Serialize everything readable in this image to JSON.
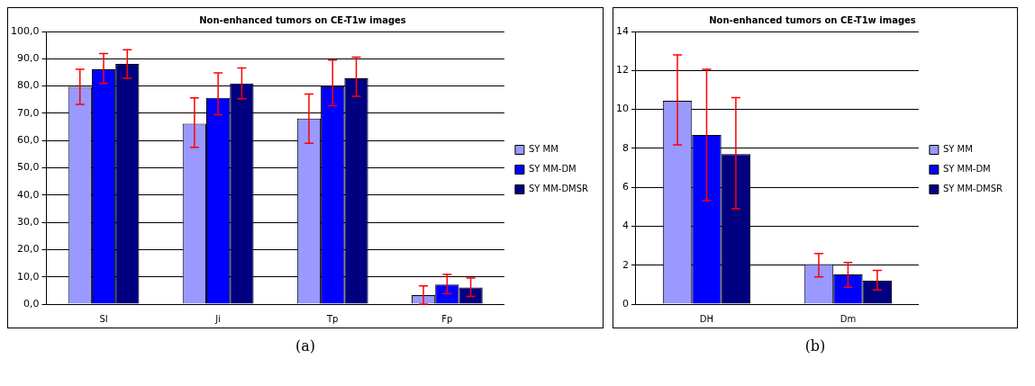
{
  "chart_data": [
    {
      "type": "bar",
      "title": "Non-enhanced tumors on CE-T1w images",
      "categories": [
        "SI",
        "Ji",
        "Tp",
        "Fp"
      ],
      "ylim": [
        0,
        100
      ],
      "yticks": [
        {
          "value": 0,
          "label": "0,0"
        },
        {
          "value": 10,
          "label": "10,0"
        },
        {
          "value": 20,
          "label": "20,0"
        },
        {
          "value": 30,
          "label": "30,0"
        },
        {
          "value": 40,
          "label": "40,0"
        },
        {
          "value": 50,
          "label": "50,0"
        },
        {
          "value": 60,
          "label": "60,0"
        },
        {
          "value": 70,
          "label": "70,0"
        },
        {
          "value": 80,
          "label": "80,0"
        },
        {
          "value": 90,
          "label": "90,0"
        },
        {
          "value": 100,
          "label": "100,0"
        }
      ],
      "grid": "y",
      "legend": "right",
      "annotations": [
        "(a)"
      ],
      "series": [
        {
          "name": "SY MM",
          "color": "#9999ff",
          "values": [
            79.7,
            66.2,
            68.1,
            3.3
          ],
          "errors": [
            [
              73.3,
              86.1
            ],
            [
              57.5,
              75.7
            ],
            [
              59.0,
              77.1
            ],
            [
              0,
              6.7
            ]
          ]
        },
        {
          "name": "SY MM-DM",
          "color": "#0000ff",
          "values": [
            86.1,
            75.7,
            79.9,
            7.2
          ],
          "errors": [
            [
              80.9,
              91.9
            ],
            [
              69.5,
              84.8
            ],
            [
              72.8,
              89.5
            ],
            [
              3.9,
              10.9
            ]
          ]
        },
        {
          "name": "SY MM-DMSR",
          "color": "#000080",
          "values": [
            88.1,
            80.9,
            82.8,
            6.1
          ],
          "errors": [
            [
              82.8,
              93.3
            ],
            [
              75.3,
              86.6
            ],
            [
              76.2,
              90.6
            ],
            [
              2.8,
              9.6
            ]
          ]
        }
      ]
    },
    {
      "type": "bar",
      "title": "Non-enhanced tumors on CE-T1w images",
      "categories": [
        "DH",
        "Dm"
      ],
      "ylim": [
        0,
        14
      ],
      "yticks": [
        0,
        2,
        4,
        6,
        8,
        10,
        12,
        14
      ],
      "grid": "y",
      "legend": "right",
      "annotations": [
        "(b)"
      ],
      "series": [
        {
          "name": "SY MM",
          "color": "#9999ff",
          "values": [
            10.44,
            2.06
          ],
          "errors": [
            [
              8.18,
              12.8
            ],
            [
              1.4,
              2.6
            ]
          ]
        },
        {
          "name": "SY MM-DM",
          "color": "#0000ff",
          "values": [
            8.69,
            1.53
          ],
          "errors": [
            [
              5.31,
              12.06
            ],
            [
              0.87,
              2.14
            ]
          ]
        },
        {
          "name": "SY MM-DMSR",
          "color": "#000080",
          "values": [
            7.71,
            1.2
          ],
          "errors": [
            [
              4.9,
              10.6
            ],
            [
              0.73,
              1.73
            ]
          ]
        }
      ]
    }
  ]
}
